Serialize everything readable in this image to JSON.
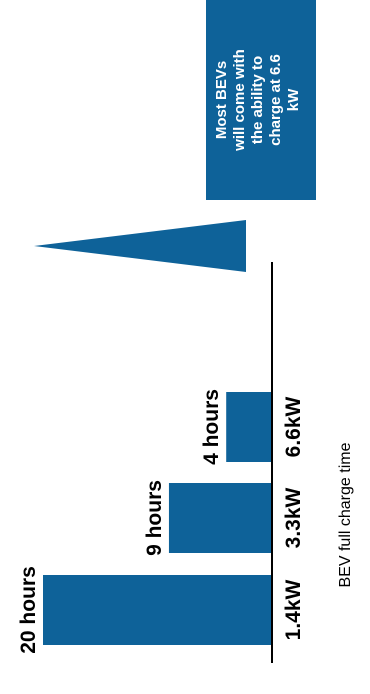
{
  "colors": {
    "bar": "#0e6299",
    "callout": "#0e6299",
    "text": "#000000",
    "callout_text": "#ffffff"
  },
  "callout": {
    "lines": [
      "Most BEVs",
      "will come with",
      "the ability to",
      "charge at 6.6",
      "kW"
    ]
  },
  "chart_data": {
    "type": "bar",
    "orientation": "rotated-90-ccw",
    "title": "",
    "xlabel": "BEV full charge time",
    "ylabel": "",
    "categories": [
      "1.4kW",
      "3.3kW",
      "6.6kW"
    ],
    "values": [
      20,
      9,
      4
    ],
    "value_labels": [
      "20 hours",
      "9 hours",
      "4 hours"
    ],
    "unit": "hours",
    "ylim": [
      0,
      20
    ],
    "grid": false,
    "legend": "none"
  }
}
